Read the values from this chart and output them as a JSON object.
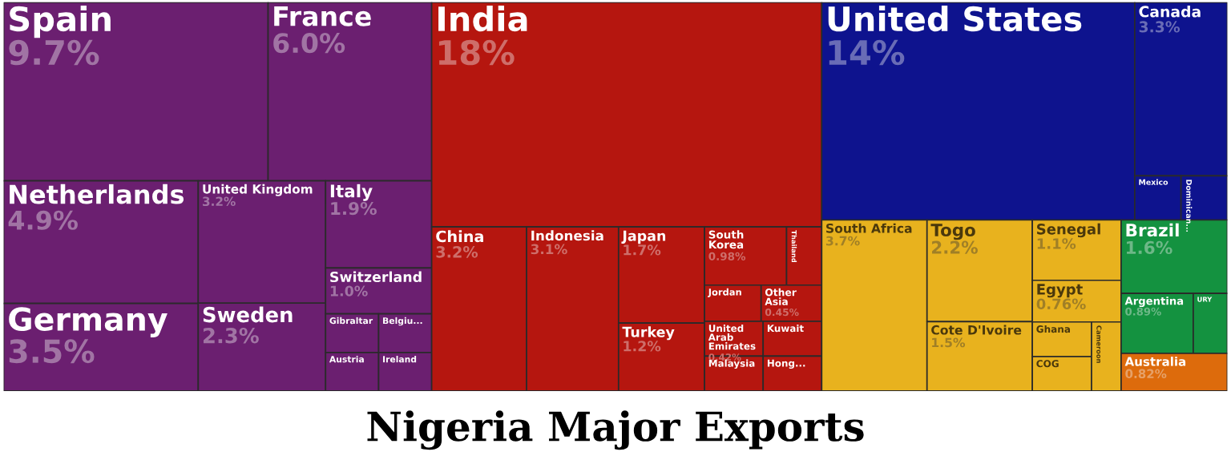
{
  "chart_data": {
    "type": "other",
    "title": "Nigeria Major Exports",
    "categories": [
      "Spain",
      "France",
      "Netherlands",
      "Germany",
      "United Kingdom",
      "Sweden",
      "Italy",
      "Switzerland",
      "Gibraltar",
      "Austria",
      "Belgiu...",
      "Ireland",
      "India",
      "China",
      "Indonesia",
      "Japan",
      "Turkey",
      "South Korea",
      "Thailand",
      "Jordan",
      "Other Asia",
      "United Arab Emirates",
      "Malaysia",
      "Kuwait",
      "Hong...",
      "United States",
      "Canada",
      "Mexico",
      "Dominican...",
      "South Africa",
      "Togo",
      "Cote D'Ivoire",
      "Senegal",
      "Egypt",
      "Ghana",
      "COG",
      "Cameroon",
      "Brazil",
      "Argentina",
      "URY",
      "Australia"
    ],
    "values": [
      9.7,
      6.0,
      4.9,
      3.5,
      3.2,
      2.3,
      1.9,
      1.0,
      null,
      null,
      null,
      null,
      18,
      3.2,
      3.1,
      1.7,
      1.2,
      0.98,
      null,
      null,
      0.45,
      0.42,
      null,
      null,
      null,
      14,
      3.3,
      null,
      null,
      3.7,
      2.2,
      1.5,
      1.1,
      0.76,
      null,
      null,
      null,
      1.6,
      0.89,
      null,
      0.82
    ],
    "value_labels": [
      "9.7%",
      "6.0%",
      "4.9%",
      "3.5%",
      "3.2%",
      "2.3%",
      "1.9%",
      "1.0%",
      null,
      null,
      null,
      null,
      "18%",
      "3.2%",
      "3.1%",
      "1.7%",
      "1.2%",
      "0.98%",
      null,
      null,
      "0.45%",
      "0.42%",
      null,
      null,
      null,
      "14%",
      "3.3%",
      null,
      null,
      "3.7%",
      "2.2%",
      "1.5%",
      "1.1%",
      "0.76%",
      null,
      null,
      null,
      "1.6%",
      "0.89%",
      null,
      "0.82%"
    ],
    "colors": [
      "#6b1f70",
      "#6b1f70",
      "#6b1f70",
      "#6b1f70",
      "#6b1f70",
      "#6b1f70",
      "#6b1f70",
      "#6b1f70",
      "#6b1f70",
      "#6b1f70",
      "#6b1f70",
      "#6b1f70",
      "#b5160f",
      "#b5160f",
      "#b5160f",
      "#b5160f",
      "#b5160f",
      "#b5160f",
      "#b5160f",
      "#b5160f",
      "#b5160f",
      "#b5160f",
      "#b5160f",
      "#b5160f",
      "#b5160f",
      "#0e138e",
      "#0e138e",
      "#0e138e",
      "#0e138e",
      "#e8b21e",
      "#e8b21e",
      "#e8b21e",
      "#e8b21e",
      "#e8b21e",
      "#e8b21e",
      "#e8b21e",
      "#e8b21e",
      "#149240",
      "#149240",
      "#149240",
      "#dd6b0c"
    ]
  }
}
